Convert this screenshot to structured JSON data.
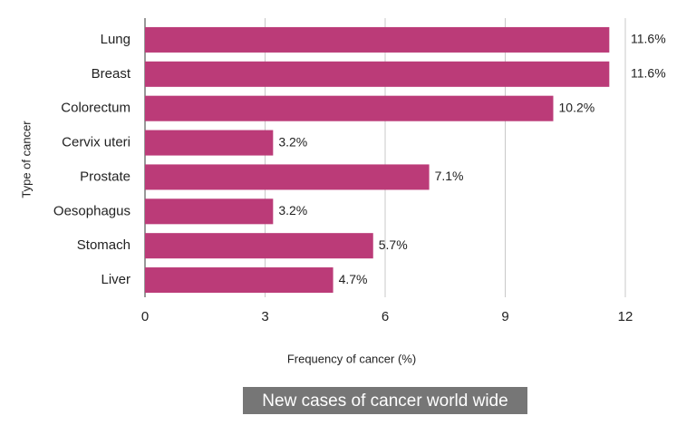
{
  "chart_data": {
    "type": "bar",
    "orientation": "horizontal",
    "title": "New cases of cancer world wide",
    "x_label": "Frequency of cancer (%)",
    "y_label": "Type of cancer",
    "categories": [
      "Lung",
      "Breast",
      "Colorectum",
      "Cervix uteri",
      "Prostate",
      "Oesophagus",
      "Stomach",
      "Liver"
    ],
    "values": [
      11.6,
      11.6,
      10.2,
      3.2,
      7.1,
      3.2,
      5.7,
      4.7
    ],
    "value_labels": [
      "11.6%",
      "11.6%",
      "10.2%",
      "3.2%",
      "7.1%",
      "3.2%",
      "5.7%",
      "4.7%"
    ],
    "color": "#bb3b78",
    "xlim": [
      0,
      12
    ],
    "xticks": [
      0,
      3,
      6,
      9,
      12
    ],
    "grid": true
  }
}
